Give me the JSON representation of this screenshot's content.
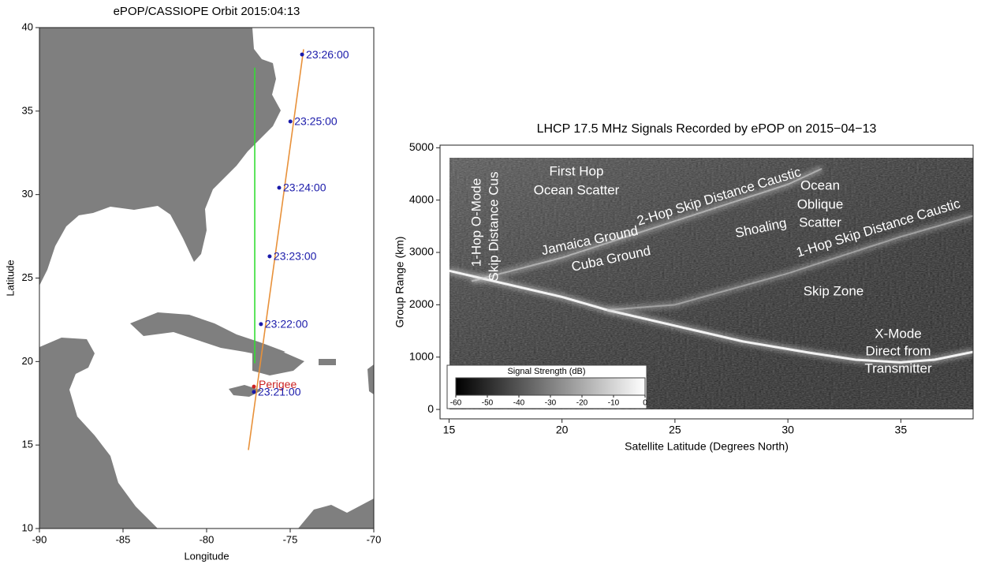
{
  "chart_data": [
    {
      "type": "line",
      "title": "ePOP/CASSIOPE Orbit 2015:04:13",
      "xlabel": "Longitude",
      "ylabel": "Latitude",
      "xlim": [
        -90,
        -70
      ],
      "xticks": [
        -90,
        -85,
        -80,
        -75,
        -70
      ],
      "ylim": [
        10,
        40
      ],
      "yticks": [
        10,
        15,
        20,
        25,
        30,
        35,
        40
      ],
      "series": [
        {
          "color": "#e8913a",
          "x": [
            -77.5,
            -74.2
          ],
          "values": [
            14.7,
            38.7
          ]
        },
        {
          "color": "#33dd33",
          "x": [
            -77.12,
            -77.12
          ],
          "values": [
            19.9,
            37.6
          ]
        }
      ],
      "points": {
        "color": "#1a1aaa",
        "x": [
          -77.17,
          -76.75,
          -76.23,
          -75.66,
          -74.99,
          -74.29
        ],
        "values": [
          18.18,
          22.24,
          26.3,
          30.41,
          34.38,
          38.39
        ],
        "labels": [
          "23:21:00",
          "23:22:00",
          "23:23:00",
          "23:24:00",
          "23:25:00",
          "23:26:00"
        ]
      },
      "perigee": {
        "label": "Perigee",
        "color": "#cc2222",
        "x": -77.17,
        "y": 18.5
      }
    },
    {
      "type": "spectrogram",
      "title": "LHCP 17.5 MHz Signals Recorded by ePOP on 2015−04−13",
      "xlabel": "Satellite Latitude (Degrees North)",
      "ylabel": "Group Range (km)",
      "xlim": [
        14.6,
        38.2
      ],
      "xticks": [
        15,
        20,
        25,
        30,
        35
      ],
      "ylim": [
        -180,
        5050
      ],
      "yticks": [
        0,
        1000,
        2000,
        3000,
        4000,
        5000
      ],
      "series": [
        {
          "color": "#ffffff",
          "x": [
            15,
            17,
            20,
            22,
            25,
            28,
            31,
            33,
            35,
            36.5,
            38.2
          ],
          "values": [
            2650,
            2450,
            2150,
            1900,
            1600,
            1300,
            1080,
            950,
            900,
            950,
            1100
          ]
        },
        {
          "color": "#d8d8d8",
          "x": [
            16,
            20,
            25,
            30,
            31.5
          ],
          "values": [
            2450,
            2900,
            3600,
            4300,
            4600
          ]
        },
        {
          "color": "#c8c8c8",
          "x": [
            22,
            25,
            30,
            35,
            38.2
          ],
          "values": [
            1900,
            2000,
            2600,
            3300,
            3700
          ]
        }
      ],
      "annotations": [
        "1-Hop O-Mode",
        "Skip Distance Cus",
        "First Hop",
        "Ocean Scatter",
        "Jamaica Ground",
        "Cuba Ground",
        "2-Hop Skip Distance Caustic",
        "Shoaling",
        "Ocean",
        "Oblique",
        "Scatter",
        "1-Hop Skip Distance Caustic",
        "Skip Zone",
        "X-Mode",
        "Direct from",
        "Transmitter"
      ],
      "colorbar": {
        "title": "Signal Strength (dB)",
        "lim": [
          -60,
          0
        ],
        "ticks": [
          -60,
          -50,
          -40,
          -30,
          -20,
          -10,
          0
        ]
      }
    }
  ]
}
